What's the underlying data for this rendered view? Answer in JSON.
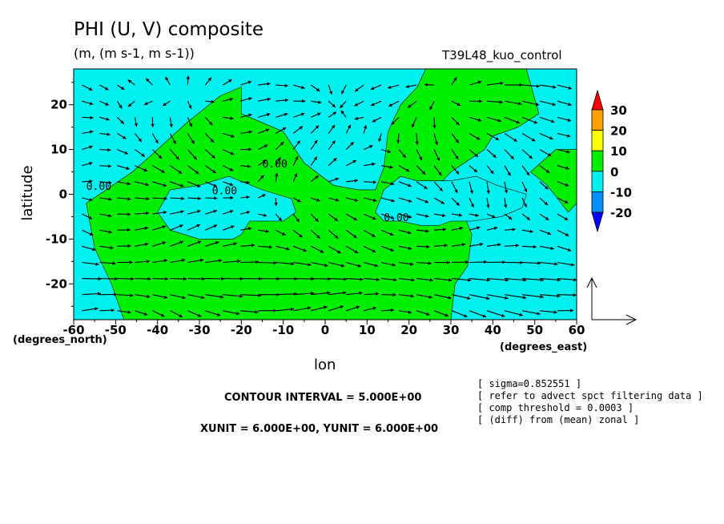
{
  "title": "PHI (U, V) composite",
  "subtitle": "(m, (m s-1, m s-1))",
  "run_label": "T39L48_kuo_control",
  "xlabel": "lon",
  "ylabel": "latitude",
  "x_unit": "(degrees_east)",
  "y_unit": "(degrees_north)",
  "contour_interval": "CONTOUR INTERVAL = 5.000E+00",
  "vector_units": "XUNIT = 6.000E+00, YUNIT = 6.000E+00",
  "notes": [
    "[ sigma=0.852551 ]",
    "[ refer to advect spct filtering data ]",
    "[ comp threshold = 0.0003 ]",
    "[ (diff) from (mean) zonal ]"
  ],
  "contour_labels": [
    "0.00",
    "0.00",
    "0.00",
    "0.00"
  ],
  "colors": {
    "negative_10": "#00f0f0",
    "zero_10": "#00ee00",
    "positive_10_20": "#ffff00",
    "positive_20_30": "#ffa000",
    "above_30": "#ff0000",
    "negative_10_20": "#0090ff",
    "below_minus_20": "#0000ff"
  },
  "chart_data": {
    "type": "heatmap",
    "overlay": "vector field (U, V)",
    "xlim": [
      -60,
      60
    ],
    "ylim": [
      -28,
      28
    ],
    "x_ticks": [
      -60,
      -50,
      -40,
      -30,
      -20,
      -10,
      0,
      10,
      20,
      30,
      40,
      50,
      60
    ],
    "y_ticks": [
      20,
      10,
      0,
      -10,
      -20
    ],
    "colorbar_levels": [
      30,
      20,
      10,
      0,
      -10,
      -20
    ],
    "colorbar_bins": [
      {
        "range": "> 30",
        "color": "#ff0000"
      },
      {
        "range": "20 to 30",
        "color": "#ffa000"
      },
      {
        "range": "10 to 20",
        "color": "#ffff00"
      },
      {
        "range": "0 to 10",
        "color": "#00ee00"
      },
      {
        "range": "-10 to 0",
        "color": "#00f0f0"
      },
      {
        "range": "-20 to -10",
        "color": "#0090ff"
      },
      {
        "range": "< -20",
        "color": "#0000ff"
      }
    ],
    "regions": [
      {
        "sign": "positive",
        "level": "0 to 10",
        "description": "main continental region",
        "lon": [
          -57,
          -46,
          -40,
          -33,
          -25,
          -20,
          -20,
          -10,
          -5,
          2,
          8,
          12,
          14,
          15,
          18,
          22,
          24,
          28,
          32,
          36,
          40,
          48,
          51,
          46,
          40,
          38,
          30,
          28,
          30,
          32,
          35,
          34,
          31,
          30,
          29,
          24,
          18,
          12,
          8,
          2,
          -5,
          -10,
          -15,
          -25,
          -35,
          -43,
          -48,
          -51,
          -55,
          -57
        ],
        "lat": [
          -2,
          5,
          10,
          16,
          22,
          24,
          18,
          14,
          7,
          2,
          1,
          1,
          6,
          14,
          20,
          24,
          28,
          28,
          28,
          28,
          28,
          28,
          18,
          15,
          13,
          10,
          5,
          3,
          1,
          -2,
          -9,
          -16,
          -20,
          -28,
          -28,
          -28,
          -28,
          -28,
          -28,
          -28,
          -28,
          -28,
          -28,
          -28,
          -28,
          -28,
          -28,
          -20,
          -12,
          -2
        ]
      },
      {
        "sign": "negative",
        "level": "-10 to 0",
        "description": "equatorial island west",
        "lon": [
          -40,
          -37,
          -30,
          -23,
          -15,
          -8,
          -7,
          -10,
          -18,
          -20,
          -22,
          -30,
          -37,
          -40
        ],
        "lat": [
          -4,
          1,
          2,
          4,
          1,
          -1,
          -4,
          -6,
          -6,
          -9,
          -10,
          -10,
          -8,
          -4
        ]
      },
      {
        "sign": "negative",
        "level": "-10 to 0",
        "description": "equatorial bay east",
        "lon": [
          12,
          14,
          18,
          22,
          30,
          36,
          41,
          48,
          47,
          42,
          35,
          30,
          27,
          23,
          18,
          14,
          12
        ],
        "lat": [
          -4,
          1,
          4,
          3,
          3,
          4,
          2,
          0,
          -3,
          -5,
          -6,
          -6,
          -7,
          -7,
          -6,
          -6,
          -4
        ]
      },
      {
        "sign": "positive",
        "level": "0 to 10",
        "description": "east edge patch",
        "lon": [
          49,
          55,
          58,
          60,
          60,
          58,
          53,
          49
        ],
        "lat": [
          5,
          10,
          10,
          10,
          -2,
          -4,
          2,
          5
        ]
      }
    ],
    "label_points": [
      {
        "text": "0.00",
        "lon": -54,
        "lat": 1
      },
      {
        "text": "0.00",
        "lon": -24,
        "lat": 0
      },
      {
        "text": "0.00",
        "lon": -12,
        "lat": 6
      },
      {
        "text": "0.00",
        "lon": 17,
        "lat": -6
      }
    ],
    "vector_field_note": "arrows on a regular grid; strong westerlies near -20 lat, divergence near 30-40E at 28N"
  }
}
